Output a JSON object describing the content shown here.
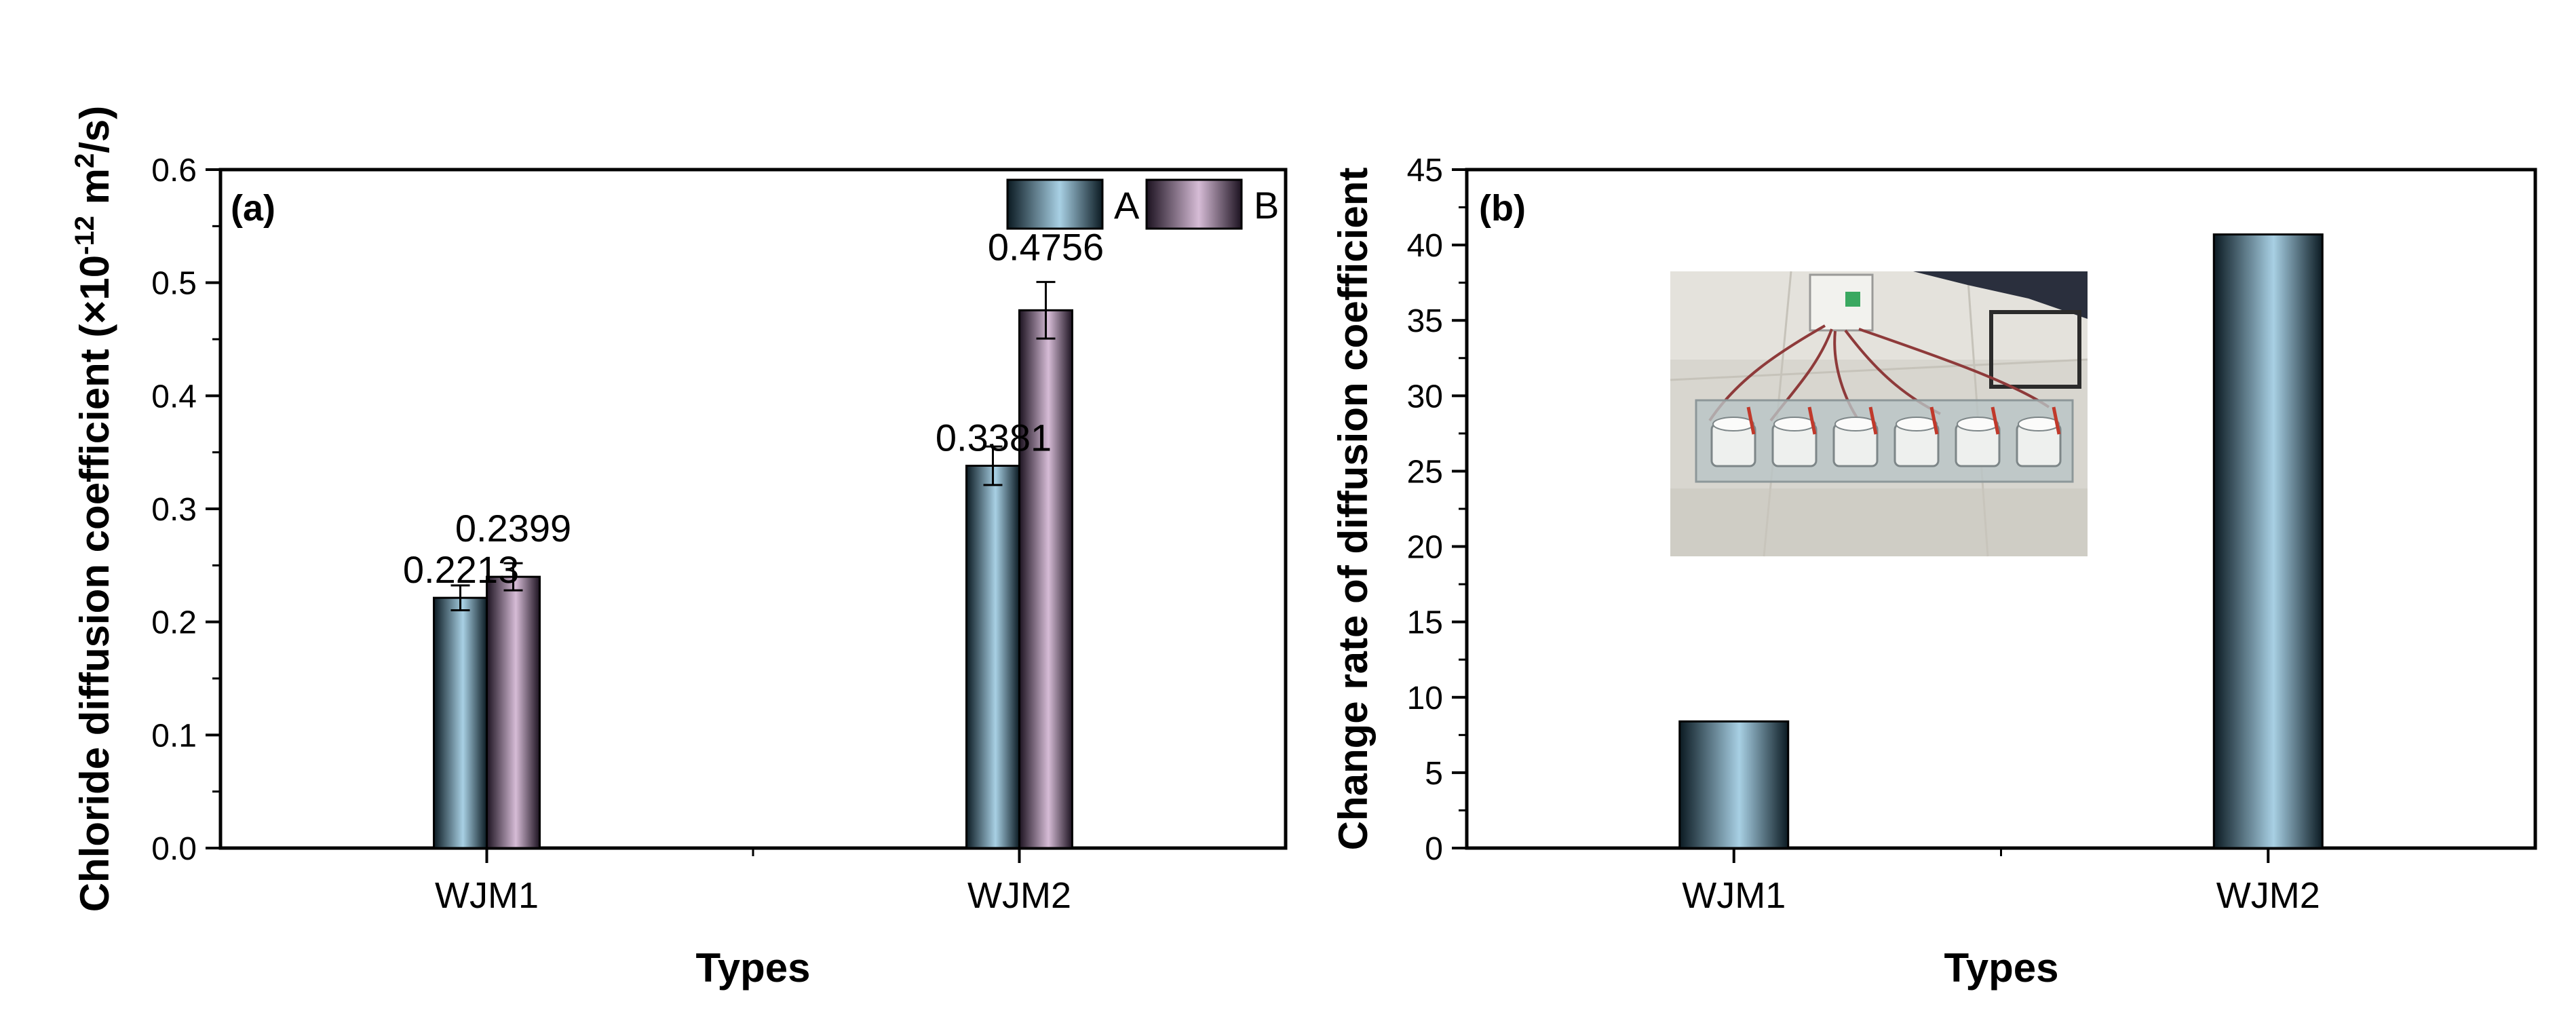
{
  "colors": {
    "series_a_light": "#a8d0e4",
    "series_a_dark": "#0b1a22",
    "series_b_light": "#d6bcd6",
    "series_b_dark": "#1c1220",
    "rate_light": "#a8d0e4",
    "rate_dark": "#0b1a22"
  },
  "chart_data": [
    {
      "type": "bar",
      "panel_label": "(a)",
      "categories": [
        "WJM1",
        "WJM2"
      ],
      "series": [
        {
          "name": "A",
          "values": [
            0.2213,
            0.3381
          ],
          "errors": [
            0.011,
            0.017
          ],
          "labels": [
            "0.2213",
            "0.3381"
          ]
        },
        {
          "name": "B",
          "values": [
            0.2399,
            0.4756
          ],
          "errors": [
            0.012,
            0.025
          ],
          "labels": [
            "0.2399",
            "0.4756"
          ]
        }
      ],
      "xlabel": "Types",
      "ylabel_main": "Chloride diffusion coefficient (×10",
      "ylabel_exp1": "-12",
      "ylabel_mid": " m",
      "ylabel_exp2": "2",
      "ylabel_end": "/s)",
      "ylim": [
        0,
        0.6
      ],
      "yticks": [
        "0.0",
        "0.1",
        "0.2",
        "0.3",
        "0.4",
        "0.5",
        "0.6"
      ],
      "legend_position": "top-right",
      "grid": false
    },
    {
      "type": "bar",
      "panel_label": "(b)",
      "categories": [
        "WJM1",
        "WJM2"
      ],
      "values": [
        8.4,
        40.7
      ],
      "xlabel": "Types",
      "ylabel": "Change rate of diffusion coefficient",
      "ylim": [
        0,
        45
      ],
      "yticks": [
        "0",
        "5",
        "10",
        "15",
        "20",
        "25",
        "30",
        "35",
        "40",
        "45"
      ],
      "inset": "photo-of-test-setup",
      "grid": false
    }
  ]
}
